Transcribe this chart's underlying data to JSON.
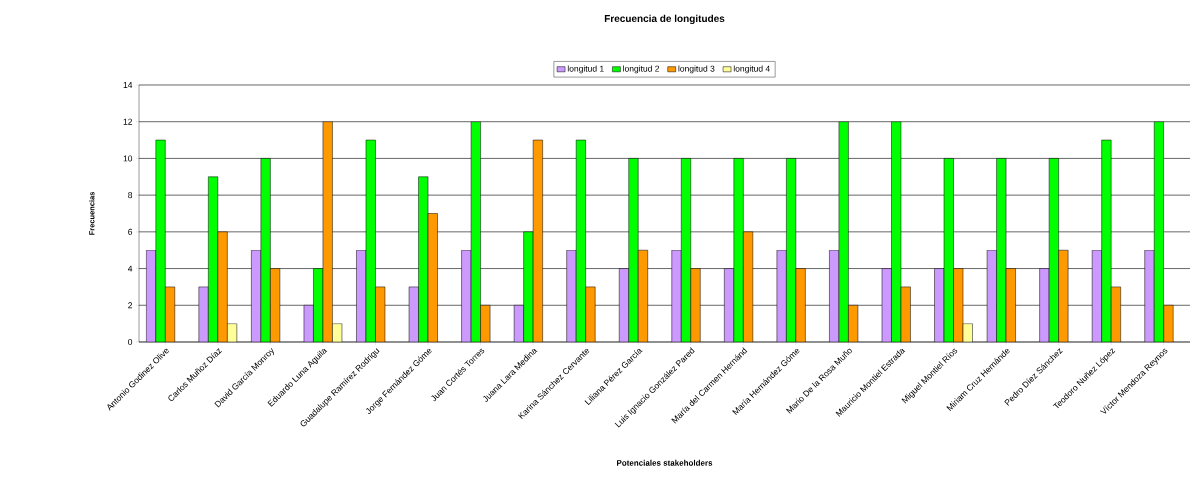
{
  "chart_data": {
    "type": "bar",
    "title": "Frecuencia de longitudes",
    "xlabel": "Potenciales stakeholders",
    "ylabel": "Frecuencias",
    "categories": [
      "Antonio Godinez Olive",
      "Carlos Muñoz Díaz",
      "David García Monroy",
      "Eduardo Luna Aguila",
      "Guadalupe Ramírez Rodrigu",
      "Jorge Fernández Góme",
      "Juan Cortés Torres",
      "Juana Lara Medina",
      "Karina Sánchez Cervante",
      "Liliana Pérez García",
      "Luis Ignacio González Pared",
      "María del Carmen Hernánd",
      "María Hernández Góme",
      "Mario De la Rosa Muño",
      "Mauricio Montiel Estrada",
      "Miguel Montiel Ríos",
      "Miriam Cruz Hernánde",
      "Pedro Díez Sánchez",
      "Teodoro Nuñez López",
      "Víctor Mendoza Reynos"
    ],
    "series": [
      {
        "name": "longitud 1",
        "color": "#cc99ff",
        "values": [
          5,
          3,
          5,
          2,
          5,
          3,
          5,
          2,
          5,
          4,
          5,
          4,
          5,
          5,
          4,
          4,
          5,
          4,
          5,
          5
        ]
      },
      {
        "name": "longitud 2",
        "color": "#00ff00",
        "values": [
          11,
          9,
          10,
          4,
          11,
          9,
          12,
          6,
          11,
          10,
          10,
          10,
          10,
          12,
          12,
          10,
          10,
          10,
          11,
          12
        ]
      },
      {
        "name": "longitud 3",
        "color": "#ff9900",
        "values": [
          3,
          6,
          4,
          12,
          3,
          7,
          2,
          11,
          3,
          5,
          4,
          6,
          4,
          2,
          3,
          4,
          4,
          5,
          3,
          2
        ]
      },
      {
        "name": "longitud 4",
        "color": "#ffff99",
        "values": [
          null,
          1,
          null,
          1,
          null,
          null,
          null,
          null,
          null,
          null,
          null,
          null,
          null,
          null,
          null,
          1,
          null,
          null,
          null,
          null
        ]
      }
    ],
    "ylim": [
      0,
      14
    ],
    "yticks": [
      0,
      2,
      4,
      6,
      8,
      10,
      12,
      14
    ],
    "grid": "y",
    "legend": "top"
  }
}
